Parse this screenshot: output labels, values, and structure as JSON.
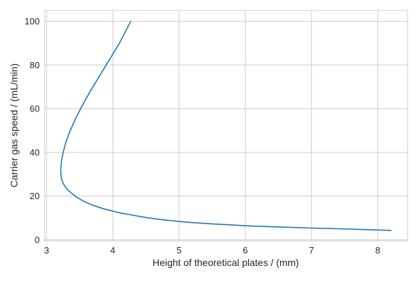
{
  "chart_data": {
    "type": "line",
    "title": "",
    "xlabel": "Height of theoretical plates / (mm)",
    "ylabel": "Carrier gas speed / (mL/min)",
    "xlim": [
      2.97,
      8.45
    ],
    "ylim": [
      -0.5,
      105
    ],
    "xticks": [
      3,
      4,
      5,
      6,
      7,
      8
    ],
    "yticks": [
      0,
      20,
      40,
      60,
      80,
      100
    ],
    "grid": true,
    "legend": "none",
    "series": [
      {
        "color": "#1f77b4",
        "points": [
          [
            8.2,
            4.3
          ],
          [
            7.6,
            4.9
          ],
          [
            7.0,
            5.4
          ],
          [
            6.5,
            5.9
          ],
          [
            6.1,
            6.3
          ],
          [
            5.8,
            6.8
          ],
          [
            5.5,
            7.3
          ],
          [
            5.2,
            7.9
          ],
          [
            5.0,
            8.4
          ],
          [
            4.75,
            9.2
          ],
          [
            4.5,
            10.2
          ],
          [
            4.3,
            11.3
          ],
          [
            4.1,
            12.4
          ],
          [
            3.95,
            13.5
          ],
          [
            3.85,
            14.3
          ],
          [
            3.7,
            15.8
          ],
          [
            3.55,
            17.8
          ],
          [
            3.45,
            19.6
          ],
          [
            3.37,
            21.5
          ],
          [
            3.3,
            23.5
          ],
          [
            3.25,
            25.8
          ],
          [
            3.225,
            28.0
          ],
          [
            3.215,
            30.5
          ],
          [
            3.215,
            33.0
          ],
          [
            3.225,
            36.0
          ],
          [
            3.25,
            40.0
          ],
          [
            3.29,
            44.5
          ],
          [
            3.35,
            49.5
          ],
          [
            3.43,
            55.0
          ],
          [
            3.53,
            61.0
          ],
          [
            3.65,
            67.5
          ],
          [
            3.8,
            75.0
          ],
          [
            3.95,
            82.5
          ],
          [
            4.1,
            90.0
          ],
          [
            4.27,
            100.0
          ]
        ]
      }
    ]
  }
}
